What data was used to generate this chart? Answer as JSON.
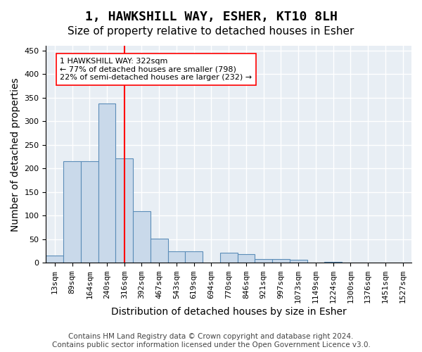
{
  "title": "1, HAWKSHILL WAY, ESHER, KT10 8LH",
  "subtitle": "Size of property relative to detached houses in Esher",
  "xlabel": "Distribution of detached houses by size in Esher",
  "ylabel": "Number of detached properties",
  "footer_line1": "Contains HM Land Registry data © Crown copyright and database right 2024.",
  "footer_line2": "Contains public sector information licensed under the Open Government Licence v3.0.",
  "bin_labels": [
    "13sqm",
    "89sqm",
    "164sqm",
    "240sqm",
    "316sqm",
    "392sqm",
    "467sqm",
    "543sqm",
    "619sqm",
    "694sqm",
    "770sqm",
    "846sqm",
    "921sqm",
    "997sqm",
    "1073sqm",
    "1149sqm",
    "1224sqm",
    "1300sqm",
    "1376sqm",
    "1451sqm",
    "1527sqm"
  ],
  "bar_values": [
    15,
    215,
    215,
    338,
    222,
    110,
    52,
    25,
    25,
    0,
    22,
    18,
    8,
    8,
    6,
    0,
    2,
    0,
    1,
    0,
    0
  ],
  "bar_color": "#c9d9ea",
  "bar_edge_color": "#5b8db8",
  "vline_x_index": 4,
  "vline_color": "red",
  "annotation_text": "1 HAWKSHILL WAY: 322sqm\n← 77% of detached houses are smaller (798)\n22% of semi-detached houses are larger (232) →",
  "annotation_box_color": "white",
  "annotation_box_edge": "red",
  "ylim": [
    0,
    460
  ],
  "yticks": [
    0,
    50,
    100,
    150,
    200,
    250,
    300,
    350,
    400,
    450
  ],
  "bg_color": "#e8eef4",
  "grid_color": "white",
  "title_fontsize": 13,
  "subtitle_fontsize": 11,
  "axis_label_fontsize": 10,
  "tick_fontsize": 8,
  "footer_fontsize": 7.5
}
